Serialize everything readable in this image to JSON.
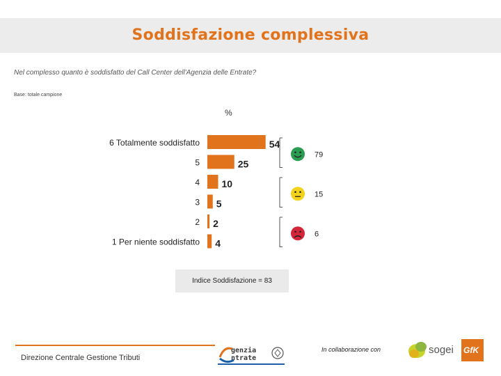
{
  "header": {
    "title": "Soddisfazione complessiva",
    "question": "Nel complesso quanto è soddisfatto del Call Center dell'Agenzia delle Entrate?",
    "base": "Base: totale campione",
    "unit": "%"
  },
  "chart_data": {
    "type": "bar",
    "orientation": "horizontal",
    "categories": [
      "6 Totalmente soddisfatto",
      "5",
      "4",
      "3",
      "2",
      "1 Per niente soddisfatto"
    ],
    "values": [
      54,
      25,
      10,
      5,
      2,
      4
    ],
    "groups": [
      {
        "icon": "happy-face-icon",
        "color": "#2a9d52",
        "value": "79"
      },
      {
        "icon": "neutral-face-icon",
        "color": "#f2d21b",
        "value": "15"
      },
      {
        "icon": "sad-face-icon",
        "color": "#d3263a",
        "value": "6"
      }
    ],
    "bar_color": "#e0731c"
  },
  "index": {
    "label": "Indice Soddisfazione = 83"
  },
  "footer": {
    "department": "Direzione Centrale Gestione Tributi",
    "agency_line1": "genzia",
    "agency_line2": "ntrate",
    "collaboration": "In collaborazione con",
    "partner1": "sogei",
    "partner2": "GfK"
  }
}
